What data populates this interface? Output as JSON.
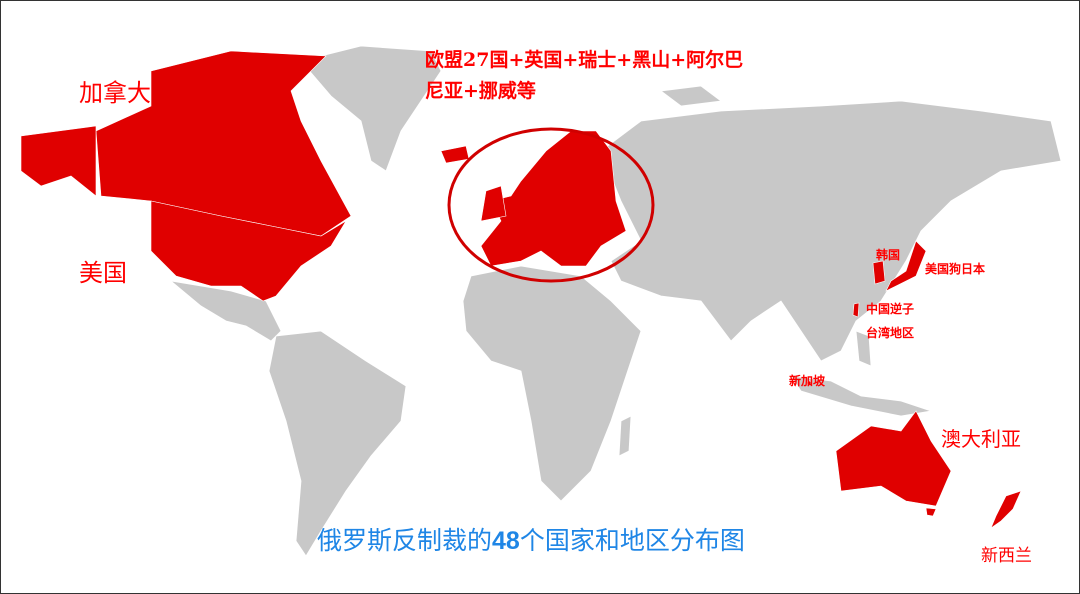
{
  "colors": {
    "sanctioning": "#e00000",
    "other": "#c8c8c8",
    "title": "#1f86e6",
    "label": "#ff0000"
  },
  "labels": {
    "canada": "加拿大",
    "usa": "美国",
    "europe_line1": "欧盟27国+英国+瑞士+黑山+阿尔巴",
    "europe_line2": "尼亚+挪威等",
    "korea": "韩国",
    "japan": "美国狗日本",
    "taiwan_line1": "中国逆子",
    "taiwan_line2": "台湾地区",
    "singapore": "新加坡",
    "australia": "澳大利亚",
    "new_zealand": "新西兰"
  },
  "title": {
    "prefix": "俄罗斯反制裁的",
    "count": "48",
    "suffix": "个国家和地区分布图"
  }
}
